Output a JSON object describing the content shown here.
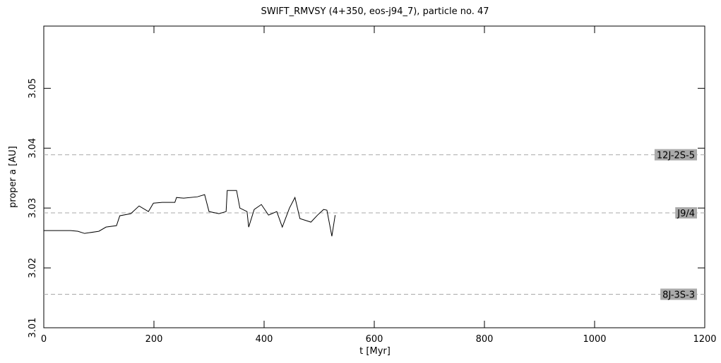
{
  "chart_data": {
    "type": "line",
    "title": "SWIFT_RMVSY (4+350, eos-j94_7), particle no. 47",
    "xlabel": "t [Myr]",
    "ylabel": "proper a [AU]",
    "xlim": [
      0,
      1200
    ],
    "ylim": [
      3.01,
      3.0604
    ],
    "xticks": [
      0,
      200,
      400,
      600,
      800,
      1000,
      1200
    ],
    "yticks": [
      3.01,
      3.02,
      3.03,
      3.04,
      3.05
    ],
    "resonances": [
      {
        "label": "12J-2S-5",
        "value": 3.0389
      },
      {
        "label": "J9/4",
        "value": 3.0292
      },
      {
        "label": "8J-3S-3",
        "value": 3.0156
      }
    ],
    "series": [
      {
        "name": "proper a",
        "color": "#000000",
        "x": [
          0,
          49,
          62,
          74,
          100,
          113,
          132,
          138,
          158,
          173,
          190,
          199,
          215,
          238,
          241,
          254,
          279,
          292,
          300,
          318,
          331,
          333,
          350,
          356,
          369,
          372,
          382,
          395,
          408,
          423,
          433,
          446,
          456,
          465,
          485,
          497,
          508,
          514,
          523,
          529
        ],
        "values": [
          3.02624,
          3.02624,
          3.02612,
          3.02576,
          3.02612,
          3.02682,
          3.02706,
          3.02871,
          3.02906,
          3.03035,
          3.02941,
          3.03082,
          3.03094,
          3.03094,
          3.03176,
          3.03165,
          3.03188,
          3.03224,
          3.02941,
          3.02906,
          3.02941,
          3.03294,
          3.03294,
          3.03,
          3.02941,
          3.02682,
          3.02976,
          3.03059,
          3.02882,
          3.02941,
          3.02682,
          3.03,
          3.03176,
          3.02824,
          3.02765,
          3.02882,
          3.02976,
          3.02965,
          3.02529,
          3.02882
        ]
      }
    ]
  }
}
